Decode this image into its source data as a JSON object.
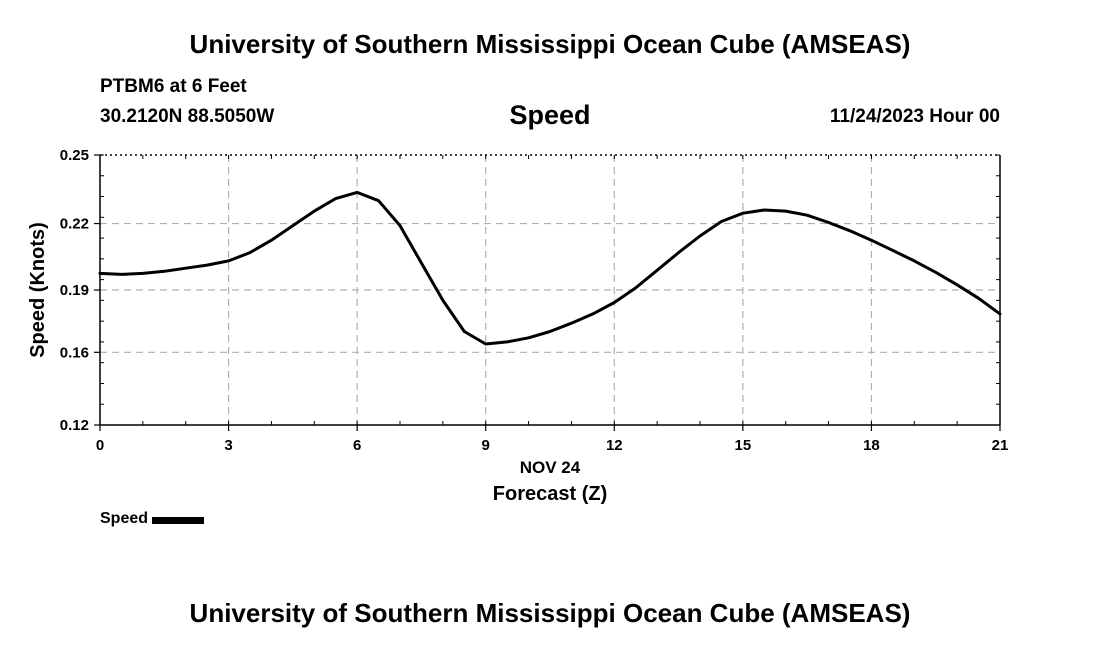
{
  "page": {
    "title_top": "University of Southern Mississippi Ocean Cube (AMSEAS)",
    "title_bottom": "University of Southern Mississippi Ocean Cube (AMSEAS)",
    "station": "PTBM6 at 6 Feet",
    "coords": "30.2120N  88.5050W",
    "chart_title": "Speed",
    "timestamp": "11/24/2023 Hour 00",
    "legend_label": "Speed"
  },
  "chart_data": {
    "type": "line",
    "title": "Speed",
    "xlabel": "Forecast (Z)",
    "xlabel_date": "NOV 24",
    "ylabel": "Speed (Knots)",
    "xlim": [
      0,
      21
    ],
    "ylim": [
      0.12,
      0.25
    ],
    "x_ticks": [
      0,
      3,
      6,
      9,
      12,
      15,
      18,
      21
    ],
    "y_ticks": [
      {
        "value": 0.12,
        "label": "0.12"
      },
      {
        "value": 0.155,
        "label": "0.16"
      },
      {
        "value": 0.185,
        "label": "0.19"
      },
      {
        "value": 0.217,
        "label": "0.22"
      },
      {
        "value": 0.25,
        "label": "0.25"
      }
    ],
    "grid": true,
    "legend": "bottom-left",
    "series": [
      {
        "name": "Speed",
        "color": "#000000",
        "x": [
          0,
          0.5,
          1,
          1.5,
          2,
          2.5,
          3,
          3.5,
          4,
          4.5,
          5,
          5.5,
          6,
          6.5,
          7,
          7.5,
          8,
          8.5,
          9,
          9.5,
          10,
          10.5,
          11,
          11.5,
          12,
          12.5,
          13,
          13.5,
          14,
          14.5,
          15,
          15.5,
          16,
          16.5,
          17,
          17.5,
          18,
          18.5,
          19,
          19.5,
          20,
          20.5,
          21
        ],
        "values": [
          0.193,
          0.1925,
          0.193,
          0.194,
          0.1955,
          0.197,
          0.199,
          0.203,
          0.209,
          0.216,
          0.223,
          0.229,
          0.232,
          0.228,
          0.216,
          0.198,
          0.18,
          0.165,
          0.159,
          0.16,
          0.162,
          0.165,
          0.169,
          0.1735,
          0.179,
          0.186,
          0.1945,
          0.203,
          0.211,
          0.218,
          0.222,
          0.2235,
          0.223,
          0.221,
          0.2175,
          0.2135,
          0.209,
          0.204,
          0.199,
          0.1935,
          0.1875,
          0.181,
          0.1735
        ]
      }
    ]
  }
}
